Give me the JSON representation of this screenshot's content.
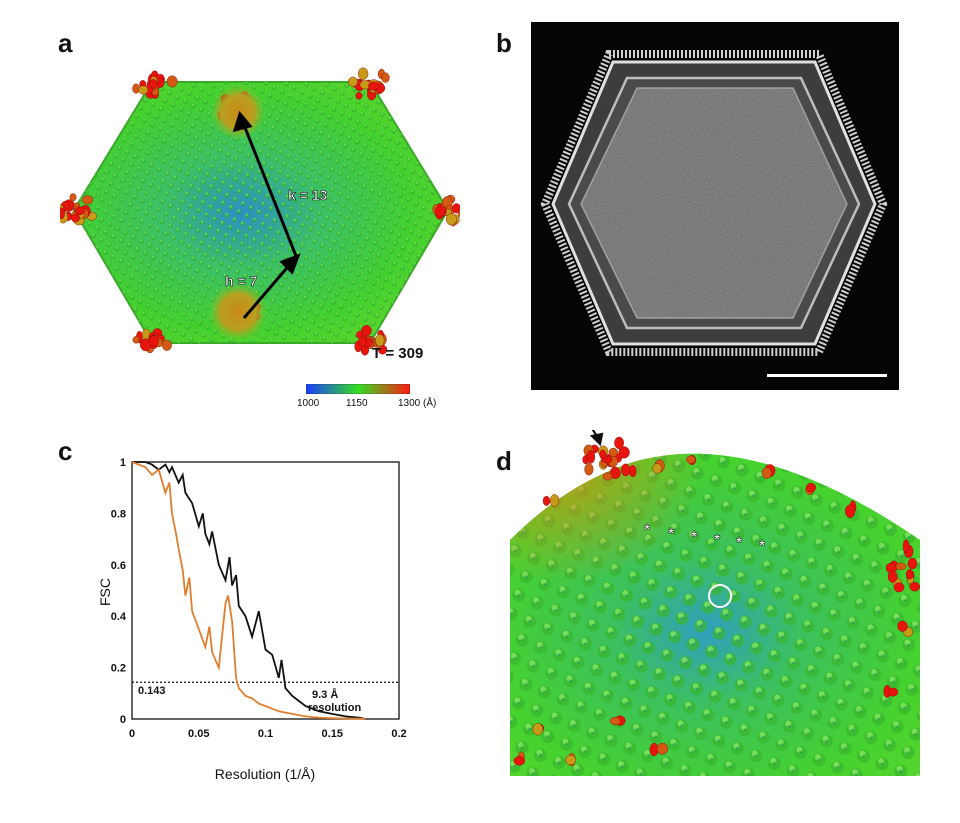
{
  "panels": {
    "a": {
      "letter": "a",
      "k_label": "k = 13",
      "h_label": "h = 7",
      "t_label": "T = 309",
      "colorbar": {
        "ticks": [
          "1000",
          "1150",
          "1300 (Å)"
        ],
        "colors": [
          "#1a3cff",
          "#33dd22",
          "#ff1a10"
        ]
      }
    },
    "b": {
      "letter": "b"
    },
    "c": {
      "letter": "c"
    },
    "d": {
      "letter": "d",
      "asterisks": [
        "*",
        "*",
        "*",
        "*",
        "*",
        "*"
      ]
    }
  },
  "chart_data": {
    "type": "line",
    "xlabel": "Resolution (1/Å)",
    "ylabel": "FSC",
    "xlim": [
      0,
      0.2
    ],
    "ylim": [
      0,
      1
    ],
    "xticks": [
      "0",
      "0.05",
      "0.1",
      "0.15",
      "0.2"
    ],
    "yticks": [
      "0",
      "0.2",
      "0.4",
      "0.6",
      "0.8",
      "1"
    ],
    "threshold": {
      "value": 0.143,
      "label": "0.143"
    },
    "annotation": {
      "line1": "9.3 Å",
      "line2": "resolution"
    },
    "series": [
      {
        "color": "#111111",
        "x": [
          0,
          0.01,
          0.015,
          0.02,
          0.025,
          0.028,
          0.03,
          0.035,
          0.038,
          0.04,
          0.045,
          0.05,
          0.053,
          0.055,
          0.058,
          0.06,
          0.065,
          0.07,
          0.073,
          0.075,
          0.078,
          0.08,
          0.085,
          0.09,
          0.095,
          0.1,
          0.105,
          0.11,
          0.112,
          0.115,
          0.12,
          0.125,
          0.13,
          0.14,
          0.15,
          0.16,
          0.17,
          0.175
        ],
        "y": [
          1,
          1,
          0.99,
          0.97,
          0.99,
          0.96,
          0.98,
          0.92,
          0.95,
          0.88,
          0.84,
          0.75,
          0.8,
          0.72,
          0.68,
          0.73,
          0.6,
          0.54,
          0.63,
          0.52,
          0.56,
          0.44,
          0.4,
          0.32,
          0.42,
          0.27,
          0.25,
          0.16,
          0.23,
          0.12,
          0.09,
          0.07,
          0.05,
          0.03,
          0.02,
          0.01,
          0.005,
          0
        ]
      },
      {
        "color": "#e07e2d",
        "x": [
          0,
          0.01,
          0.015,
          0.02,
          0.025,
          0.028,
          0.03,
          0.033,
          0.035,
          0.038,
          0.04,
          0.043,
          0.045,
          0.05,
          0.055,
          0.058,
          0.06,
          0.065,
          0.07,
          0.072,
          0.075,
          0.078,
          0.08,
          0.085,
          0.09,
          0.095,
          0.1,
          0.105,
          0.11,
          0.12,
          0.13,
          0.14,
          0.15,
          0.16,
          0.17,
          0.175
        ],
        "y": [
          1,
          0.98,
          0.95,
          0.97,
          0.88,
          0.92,
          0.8,
          0.72,
          0.66,
          0.58,
          0.48,
          0.55,
          0.42,
          0.35,
          0.28,
          0.36,
          0.26,
          0.2,
          0.45,
          0.48,
          0.38,
          0.16,
          0.12,
          0.09,
          0.08,
          0.06,
          0.05,
          0.04,
          0.03,
          0.02,
          0.01,
          0.005,
          0.003,
          0.002,
          0.001,
          0
        ]
      }
    ]
  }
}
